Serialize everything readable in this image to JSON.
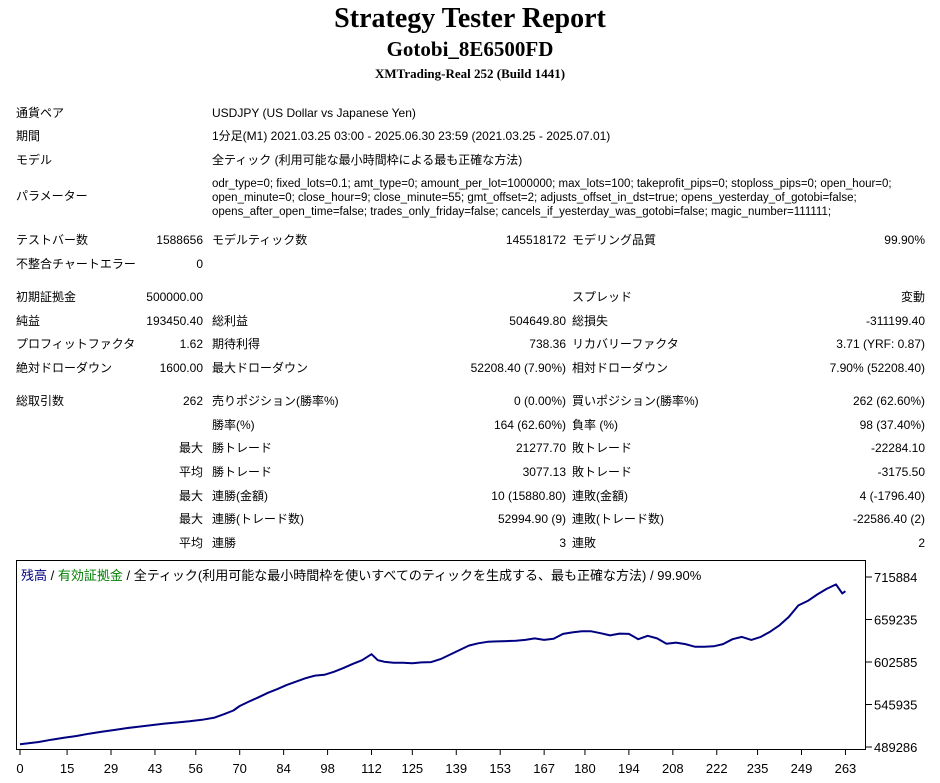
{
  "header": {
    "title": "Strategy Tester Report",
    "ea_name": "Gotobi_8E6500FD",
    "server": "XMTrading-Real 252 (Build 1441)"
  },
  "info": {
    "symbol_label": "通貨ペア",
    "symbol_value": "USDJPY (US Dollar vs Japanese Yen)",
    "period_label": "期間",
    "period_value": "1分足(M1) 2021.03.25 03:00 - 2025.06.30 23:59 (2021.03.25 - 2025.07.01)",
    "model_label": "モデル",
    "model_value": "全ティック (利用可能な最小時間枠による最も正確な方法)",
    "params_label": "パラメーター",
    "params_lines": [
      "odr_type=0; fixed_lots=0.1; amt_type=0; amount_per_lot=1000000; max_lots=100; takeprofit_pips=0; stoploss_pips=0; open_hour=0;",
      "open_minute=0; close_hour=9; close_minute=55; gmt_offset=2; adjusts_offset_in_dst=true; opens_yesterday_of_gotobi=false;",
      "opens_after_open_time=false; trades_only_friday=false; cancels_if_yesterday_was_gotobi=false; magic_number=111111;"
    ]
  },
  "stats": {
    "bars_label": "テストバー数",
    "bars_value": "1588656",
    "ticks_label": "モデルティック数",
    "ticks_value": "145518172",
    "quality_label": "モデリング品質",
    "quality_value": "99.90%",
    "mismatch_label": "不整合チャートエラー",
    "mismatch_value": "0",
    "deposit_label": "初期証拠金",
    "deposit_value": "500000.00",
    "spread_label": "スプレッド",
    "spread_value": "変動",
    "net_label": "純益",
    "net_value": "193450.40",
    "gross_profit_label": "総利益",
    "gross_profit_value": "504649.80",
    "gross_loss_label": "総損失",
    "gross_loss_value": "-311199.40",
    "pf_label": "プロフィットファクタ",
    "pf_value": "1.62",
    "expected_label": "期待利得",
    "expected_value": "738.36",
    "recovery_label": "リカバリーファクタ",
    "recovery_value": "3.71 (YRF: 0.87)",
    "abs_dd_label": "絶対ドローダウン",
    "abs_dd_value": "1600.00",
    "max_dd_label": "最大ドローダウン",
    "max_dd_value": "52208.40 (7.90%)",
    "rel_dd_label": "相対ドローダウン",
    "rel_dd_value": "7.90% (52208.40)",
    "trades_label": "総取引数",
    "trades_value": "262",
    "short_label": "売りポジション(勝率%)",
    "short_value": "0 (0.00%)",
    "long_label": "買いポジション(勝率%)",
    "long_value": "262 (62.60%)",
    "win_rate_label": "勝率(%)",
    "win_rate_value": "164 (62.60%)",
    "loss_rate_label": "負率 (%)",
    "loss_rate_value": "98 (37.40%)",
    "max_label": "最大",
    "avg_label": "平均",
    "largest_win_label": "勝トレード",
    "largest_win_value": "21277.70",
    "largest_loss_label": "敗トレード",
    "largest_loss_value": "-22284.10",
    "avg_win_label": "勝トレード",
    "avg_win_value": "3077.13",
    "avg_loss_label": "敗トレード",
    "avg_loss_value": "-3175.50",
    "max_consec_win_label": "連勝(金額)",
    "max_consec_win_value": "10 (15880.80)",
    "max_consec_loss_label": "連敗(金額)",
    "max_consec_loss_value": "4 (-1796.40)",
    "max_consec_profit_label": "連勝(トレード数)",
    "max_consec_profit_value": "52994.90 (9)",
    "max_consec_lossamt_label": "連敗(トレード数)",
    "max_consec_lossamt_value": "-22586.40 (2)",
    "avg_consec_win_label": "連勝",
    "avg_consec_win_value": "3",
    "avg_consec_loss_label": "連敗",
    "avg_consec_loss_value": "2"
  },
  "legend": {
    "balance": "残高",
    "sep1": " / ",
    "equity": "有効証拠金",
    "rest": " / 全ティック(利用可能な最小時間枠を使いすべてのティックを生成する、最も正確な方法) / 99.90%",
    "balance_color": "#000080",
    "equity_color": "#008000"
  },
  "chart_data": {
    "type": "line",
    "title": "",
    "xlabel": "",
    "ylabel": "",
    "x_ticks": [
      "0",
      "15",
      "29",
      "43",
      "56",
      "70",
      "84",
      "98",
      "112",
      "125",
      "139",
      "153",
      "167",
      "180",
      "194",
      "208",
      "222",
      "235",
      "249",
      "263"
    ],
    "y_ticks": [
      "715884",
      "659235",
      "602585",
      "545935",
      "489286"
    ],
    "xlim": [
      0,
      267
    ],
    "ylim": [
      489286,
      715884
    ],
    "series": [
      {
        "name": "残高",
        "color": "#000080",
        "x": [
          0,
          3,
          6,
          10,
          14,
          18,
          22,
          26,
          30,
          34,
          38,
          42,
          46,
          50,
          54,
          58,
          62,
          65,
          68,
          70,
          73,
          76,
          79,
          82,
          85,
          88,
          91,
          94,
          97,
          100,
          103,
          106,
          109,
          112,
          114,
          116,
          119,
          122,
          125,
          128,
          131,
          134,
          137,
          140,
          143,
          146,
          149,
          152,
          155,
          158,
          161,
          164,
          167,
          170,
          173,
          176,
          179,
          182,
          185,
          188,
          191,
          194,
          197,
          200,
          203,
          206,
          209,
          212,
          215,
          218,
          221,
          224,
          227,
          230,
          233,
          236,
          239,
          242,
          245,
          248,
          251,
          254,
          257,
          260,
          262,
          263
        ],
        "values": [
          493000,
          494500,
          496000,
          499000,
          501500,
          504000,
          507000,
          509500,
          512000,
          514500,
          516500,
          518500,
          520500,
          522000,
          523500,
          525500,
          528500,
          533000,
          538000,
          544000,
          550000,
          555500,
          561500,
          566500,
          572000,
          576500,
          581000,
          584500,
          585500,
          589500,
          594500,
          600000,
          605000,
          613000,
          605000,
          603000,
          601500,
          601500,
          601000,
          602000,
          602500,
          606500,
          612500,
          618500,
          624500,
          627500,
          629500,
          630000,
          630500,
          631000,
          632000,
          634000,
          632000,
          633500,
          640000,
          642000,
          643500,
          643500,
          641000,
          638000,
          640500,
          640000,
          633000,
          637500,
          634000,
          627000,
          628500,
          626500,
          623000,
          623000,
          623500,
          626500,
          633000,
          636000,
          632000,
          636000,
          643000,
          651500,
          663000,
          678000,
          684000,
          692500,
          700000,
          706000,
          694000,
          697000
        ]
      }
    ]
  }
}
